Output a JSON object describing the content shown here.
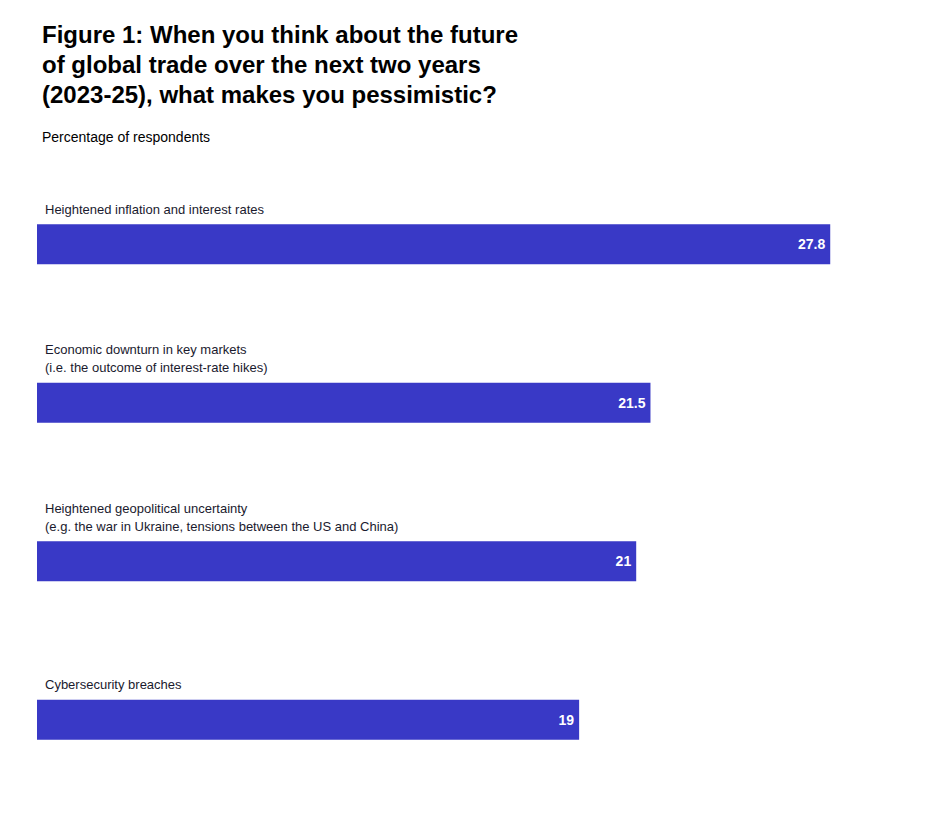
{
  "chart_data": {
    "type": "bar",
    "orientation": "horizontal",
    "title": "Figure 1: When you think about the future\nof global trade over the next two years\n(2023-25), what makes you pessimistic?",
    "subtitle": "Percentage of respondents",
    "categories": [
      "Heightened inflation and interest rates",
      "Economic downturn in key markets\n(i.e. the outcome of interest-rate hikes)",
      "Heightened geopolitical uncertainty\n(e.g. the war in Ukraine, tensions between the US and China)",
      "Cybersecurity breaches"
    ],
    "values": [
      27.8,
      21.5,
      21.0,
      19.0
    ],
    "color": "#3939c6",
    "xlim": [
      0,
      30
    ],
    "data_labels": true,
    "tick_labels": false,
    "grid": false
  }
}
